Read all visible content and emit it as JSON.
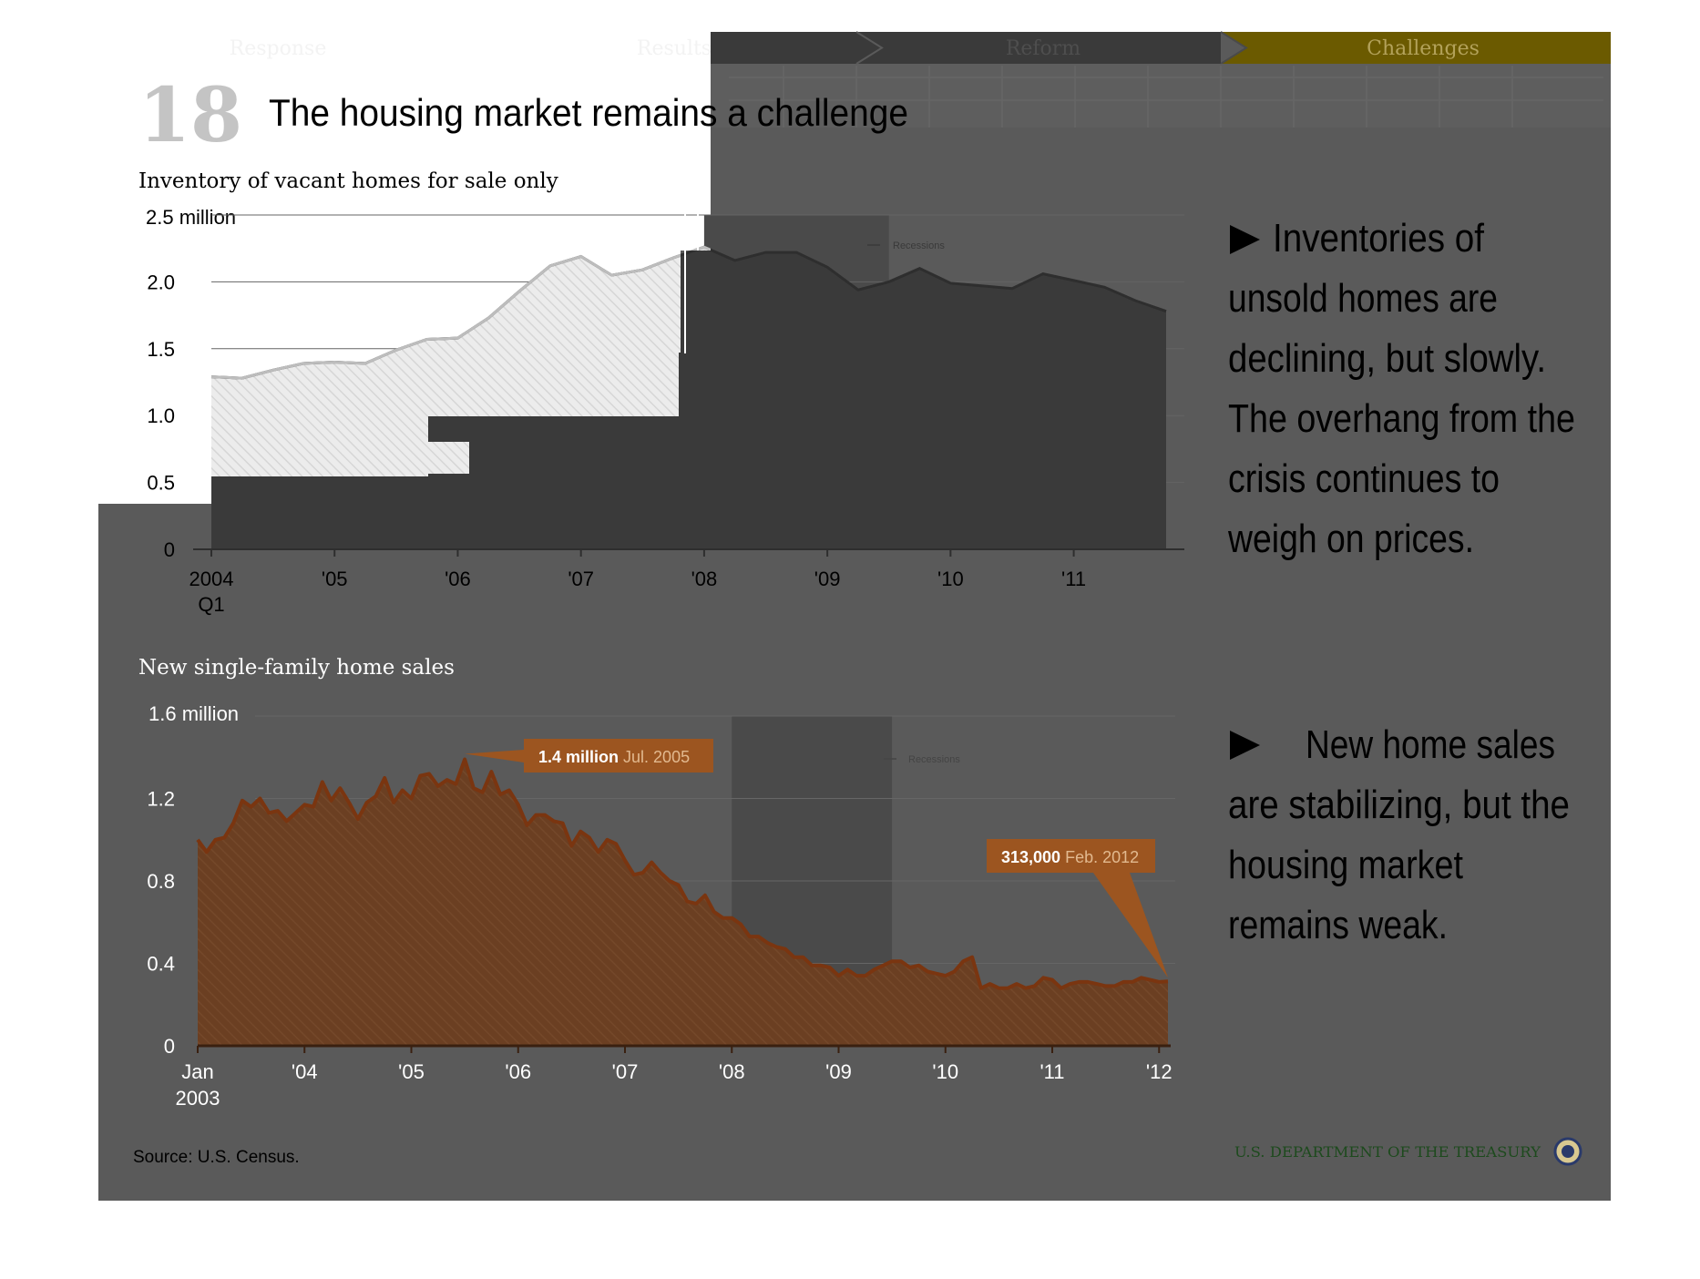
{
  "nav": {
    "tabs": [
      {
        "label": "Response"
      },
      {
        "label": "Results"
      },
      {
        "label": "Reform"
      },
      {
        "label": "Challenges"
      }
    ],
    "active_index": 3
  },
  "slide": {
    "number": "18",
    "title": "The housing market remains a challenge"
  },
  "bullets": [
    {
      "lines": [
        "Inventories of",
        "unsold homes are",
        "declining, but slowly.",
        "The overhang from the",
        "crisis continues to",
        "weigh on prices."
      ]
    },
    {
      "lines": [
        "New home sales",
        "are stabilizing, but the",
        "housing market",
        "remains weak."
      ]
    }
  ],
  "source": "Source: U.S. Census.",
  "footer_brand": "U.S. DEPARTMENT OF THE TREASURY",
  "colors": {
    "overlay": "#5a5a5a",
    "inventory_fill": "#3a3a3a",
    "inventory_fill_light": "#e3e3e3",
    "sales_fill": "#6b3f22",
    "sales_line": "#7a3510",
    "callout": "#9c5520",
    "recession": "#4a4a4a",
    "active_tab": "#6b5a00"
  },
  "chart_data": [
    {
      "type": "area",
      "title": "Inventory of vacant homes for sale only",
      "unit_label": "2.5 million",
      "yticks": [
        "0",
        "0.5",
        "1.0",
        "1.5",
        "2.0"
      ],
      "ylim": [
        0,
        2.5
      ],
      "xlim": [
        2004.0,
        2011.75
      ],
      "xticks": [
        {
          "label": "2004",
          "sub": "Q1",
          "x": 2004.0
        },
        {
          "label": "'05",
          "x": 2005.0
        },
        {
          "label": "'06",
          "x": 2006.0
        },
        {
          "label": "'07",
          "x": 2007.0
        },
        {
          "label": "'08",
          "x": 2008.0
        },
        {
          "label": "'09",
          "x": 2009.0
        },
        {
          "label": "'10",
          "x": 2010.0
        },
        {
          "label": "'11",
          "x": 2011.0
        }
      ],
      "legend": "Recessions",
      "recessions": [
        [
          2008.0,
          2009.5
        ]
      ],
      "x": [
        2004.0,
        2004.25,
        2004.5,
        2004.75,
        2005.0,
        2005.25,
        2005.5,
        2005.75,
        2006.0,
        2006.25,
        2006.5,
        2006.75,
        2007.0,
        2007.25,
        2007.5,
        2007.75,
        2008.0,
        2008.25,
        2008.5,
        2008.75,
        2009.0,
        2009.25,
        2009.5,
        2009.75,
        2010.0,
        2010.25,
        2010.5,
        2010.75,
        2011.0,
        2011.25,
        2011.5,
        2011.75
      ],
      "values": [
        1.29,
        1.28,
        1.34,
        1.39,
        1.4,
        1.39,
        1.49,
        1.57,
        1.58,
        1.73,
        1.93,
        2.12,
        2.19,
        2.05,
        2.09,
        2.18,
        2.26,
        2.16,
        2.22,
        2.22,
        2.11,
        1.94,
        2.0,
        2.1,
        1.99,
        1.97,
        1.95,
        2.06,
        2.01,
        1.96,
        1.86,
        1.78
      ]
    },
    {
      "type": "area",
      "title": "New single-family home sales",
      "unit_label": "1.6 million",
      "yticks": [
        "0",
        "0.4",
        "0.8",
        "1.2"
      ],
      "ylim": [
        0,
        1.6
      ],
      "xlim": [
        2003.0,
        2012.083
      ],
      "xticks": [
        {
          "label": "Jan",
          "sub": "2003",
          "x": 2003.0
        },
        {
          "label": "'04",
          "x": 2004.0
        },
        {
          "label": "'05",
          "x": 2005.0
        },
        {
          "label": "'06",
          "x": 2006.0
        },
        {
          "label": "'07",
          "x": 2007.0
        },
        {
          "label": "'08",
          "x": 2008.0
        },
        {
          "label": "'09",
          "x": 2009.0
        },
        {
          "label": "'10",
          "x": 2010.0
        },
        {
          "label": "'11",
          "x": 2011.0
        },
        {
          "label": "'12",
          "x": 2012.0
        }
      ],
      "legend": "Recessions",
      "recessions": [
        [
          2008.0,
          2009.5
        ]
      ],
      "annotations": [
        {
          "strong": "1.4 million",
          "rest": " Jul. 2005",
          "x": 2005.5,
          "y": 1.39
        },
        {
          "strong": "313,000",
          "rest": " Feb. 2012",
          "x": 2012.083,
          "y": 0.313
        }
      ],
      "values": [
        1.0,
        0.94,
        1.0,
        1.01,
        1.08,
        1.19,
        1.16,
        1.2,
        1.13,
        1.14,
        1.09,
        1.13,
        1.17,
        1.16,
        1.28,
        1.19,
        1.25,
        1.18,
        1.1,
        1.18,
        1.21,
        1.3,
        1.18,
        1.24,
        1.2,
        1.31,
        1.32,
        1.26,
        1.29,
        1.27,
        1.39,
        1.25,
        1.23,
        1.33,
        1.22,
        1.24,
        1.17,
        1.07,
        1.12,
        1.12,
        1.09,
        1.08,
        0.97,
        1.04,
        1.01,
        0.94,
        1.0,
        0.98,
        0.9,
        0.83,
        0.84,
        0.89,
        0.84,
        0.8,
        0.78,
        0.7,
        0.69,
        0.73,
        0.65,
        0.62,
        0.62,
        0.59,
        0.53,
        0.53,
        0.5,
        0.48,
        0.47,
        0.43,
        0.43,
        0.39,
        0.39,
        0.38,
        0.34,
        0.37,
        0.34,
        0.34,
        0.37,
        0.39,
        0.41,
        0.41,
        0.38,
        0.39,
        0.36,
        0.35,
        0.34,
        0.36,
        0.41,
        0.43,
        0.28,
        0.3,
        0.28,
        0.28,
        0.3,
        0.28,
        0.29,
        0.33,
        0.32,
        0.28,
        0.3,
        0.31,
        0.31,
        0.3,
        0.29,
        0.29,
        0.31,
        0.31,
        0.33,
        0.32,
        0.31,
        0.313
      ]
    }
  ]
}
